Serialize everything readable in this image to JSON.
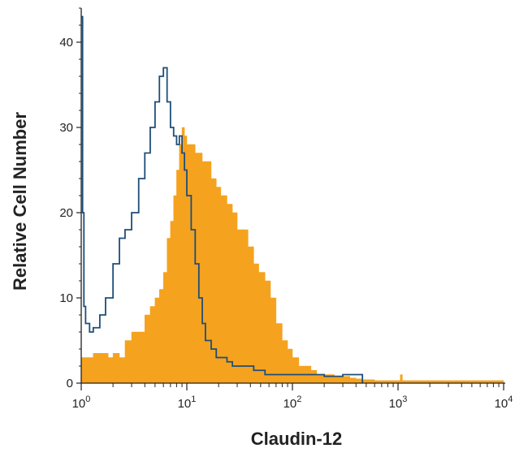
{
  "chart_data": {
    "type": "area",
    "xlabel": "Claudin-12",
    "ylabel": "Relative Cell Number",
    "xscale": "log",
    "xlim": [
      1,
      10000
    ],
    "ylim": [
      0,
      44
    ],
    "x_ticks": [
      {
        "value": 1,
        "base": "10",
        "exp": "0"
      },
      {
        "value": 10,
        "base": "10",
        "exp": "1"
      },
      {
        "value": 100,
        "base": "10",
        "exp": "2"
      },
      {
        "value": 1000,
        "base": "10",
        "exp": "3"
      },
      {
        "value": 10000,
        "base": "10",
        "exp": "4"
      }
    ],
    "y_ticks": [
      {
        "value": 0,
        "label": "0"
      },
      {
        "value": 10,
        "label": "10"
      },
      {
        "value": 20,
        "label": "20"
      },
      {
        "value": 30,
        "label": "30"
      },
      {
        "value": 40,
        "label": "40"
      }
    ],
    "grid": false,
    "series": [
      {
        "style": "filled",
        "color": "#F5A21F",
        "x": [
          1,
          1.1,
          1.3,
          1.5,
          1.8,
          2.0,
          2.3,
          2.6,
          3.0,
          3.5,
          4.0,
          4.5,
          5.0,
          5.5,
          6.0,
          6.5,
          7.0,
          7.5,
          8.0,
          8.5,
          9.0,
          9.5,
          10,
          11,
          12,
          13,
          14,
          15,
          17,
          19,
          21,
          24,
          27,
          30,
          34,
          38,
          43,
          48,
          55,
          62,
          70,
          80,
          90,
          100,
          115,
          130,
          150,
          170,
          200,
          250,
          300,
          350,
          400,
          450,
          600,
          800,
          1000,
          1050,
          1100,
          1200,
          1500,
          2000,
          3000,
          5000,
          7000,
          10000
        ],
        "y": [
          3,
          3,
          3.5,
          3.5,
          3,
          3.5,
          3,
          5,
          6,
          6,
          8,
          9,
          10,
          11,
          13,
          17,
          19,
          22,
          25,
          28,
          30,
          29,
          28,
          28,
          27,
          27,
          26,
          26,
          24,
          23,
          22,
          21,
          20,
          18,
          18,
          16,
          14,
          13,
          12,
          10,
          7,
          5,
          4,
          3,
          2,
          2,
          1.5,
          1,
          1,
          0.8,
          0.8,
          0.6,
          0.5,
          0.4,
          0.3,
          0.3,
          0.3,
          1,
          0.3,
          0.3,
          0.3,
          0.3,
          0.3,
          0.3,
          0.3,
          0.3
        ]
      },
      {
        "style": "outline",
        "color": "#1E4E79",
        "x": [
          1,
          1.03,
          1.06,
          1.1,
          1.2,
          1.3,
          1.5,
          1.7,
          2.0,
          2.3,
          2.6,
          3.0,
          3.5,
          4.0,
          4.5,
          5.0,
          5.5,
          6.0,
          6.5,
          7.0,
          7.5,
          8.0,
          8.5,
          9.0,
          9.5,
          10,
          11,
          12,
          13,
          14,
          15,
          17,
          19,
          21,
          24,
          27,
          30,
          34,
          38,
          43,
          48,
          55,
          62,
          70,
          80,
          90,
          100,
          120,
          150,
          200,
          250,
          300,
          350,
          400,
          450,
          460
        ],
        "y": [
          43,
          20,
          9,
          7,
          6,
          6.5,
          8,
          10,
          14,
          17,
          18,
          20,
          24,
          27,
          30,
          33,
          36,
          37,
          33,
          30,
          29,
          28,
          29,
          27,
          25,
          22,
          18,
          14,
          10,
          7,
          5,
          4,
          3,
          3,
          2.5,
          2,
          2,
          2,
          2,
          1.5,
          1.5,
          1,
          1,
          1,
          1,
          1,
          1,
          1,
          1,
          0.8,
          0.8,
          1,
          1,
          1,
          1,
          0
        ]
      }
    ]
  }
}
